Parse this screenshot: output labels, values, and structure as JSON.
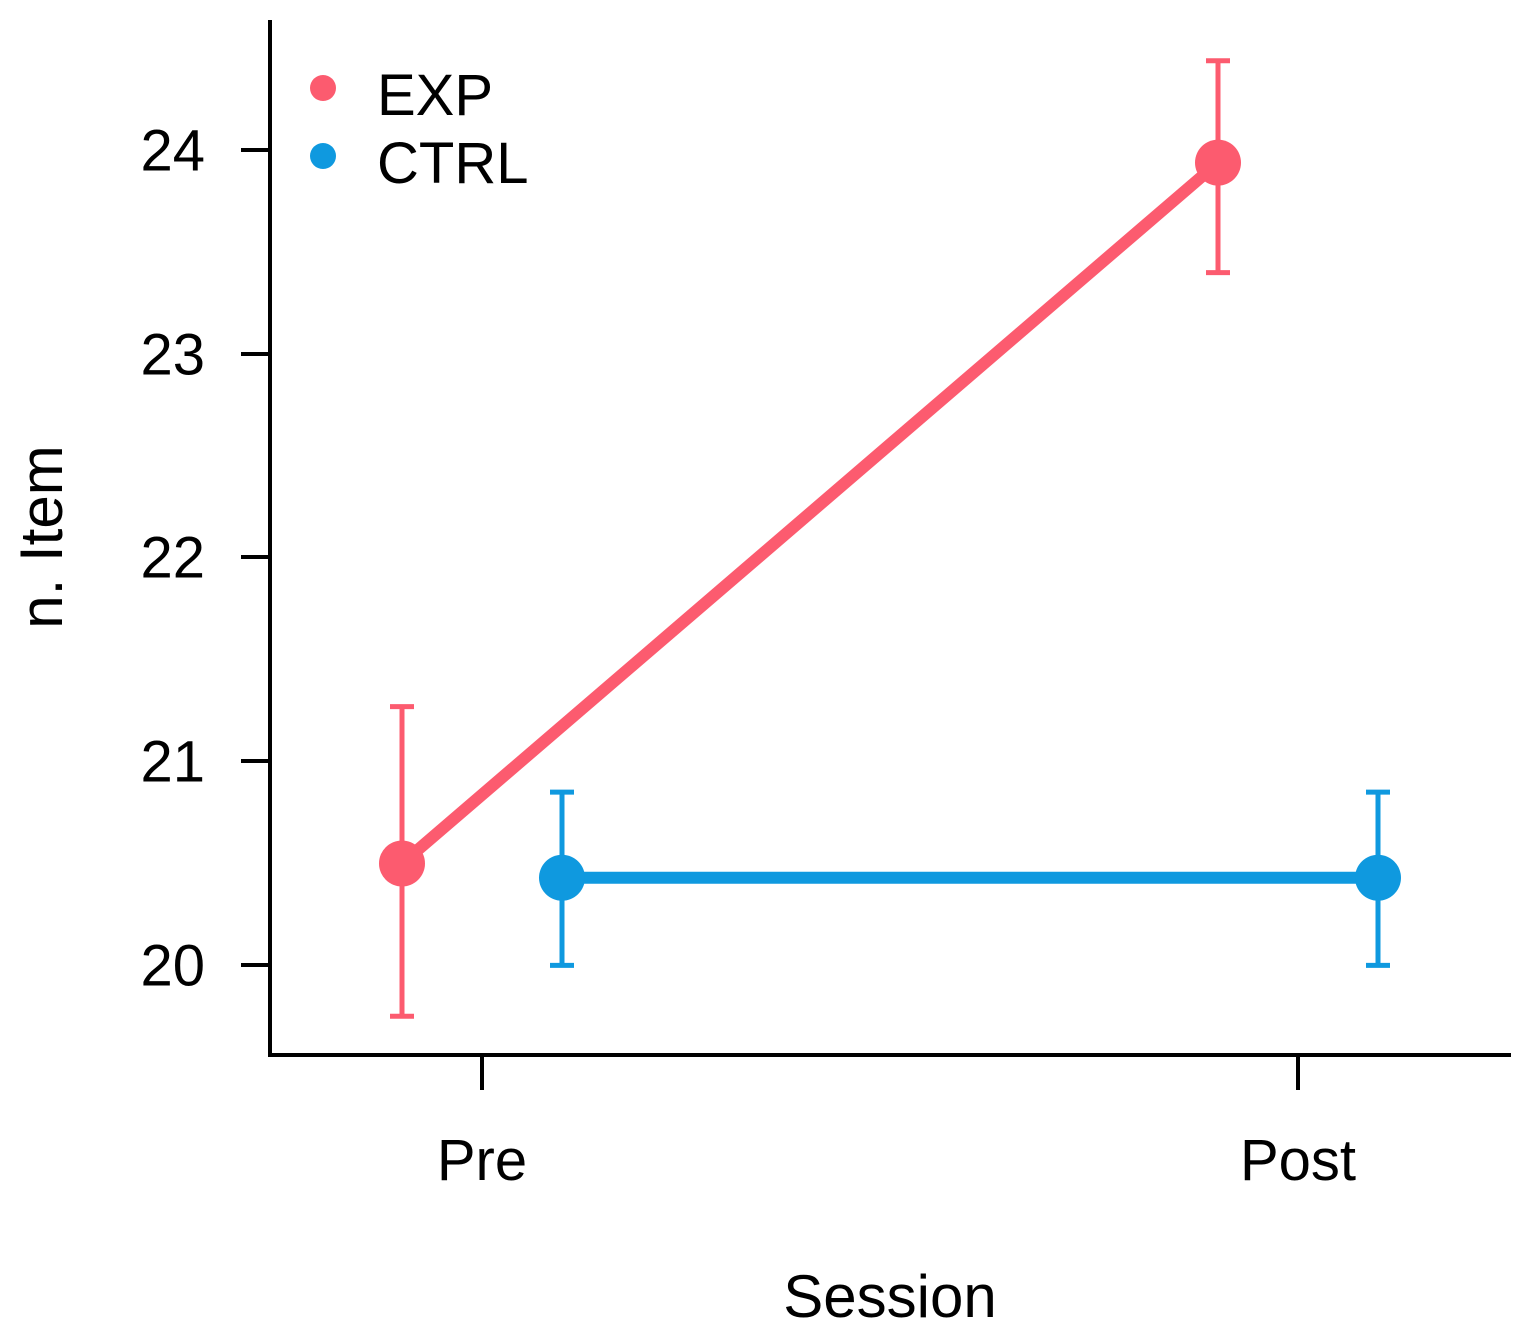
{
  "chart_data": {
    "type": "line",
    "title": "",
    "xlabel": "Session",
    "ylabel": "n. Item",
    "categories": [
      "Pre",
      "Post"
    ],
    "series": [
      {
        "name": "EXP",
        "color": "#FC5B6F",
        "values": [
          20.5,
          23.94
        ],
        "ci_lower": [
          19.75,
          23.4
        ],
        "ci_upper": [
          21.27,
          24.44
        ]
      },
      {
        "name": "CTRL",
        "color": "#0F99DF",
        "values": [
          20.43,
          20.43
        ],
        "ci_lower": [
          20.0,
          20.0
        ],
        "ci_upper": [
          20.85,
          20.85
        ]
      }
    ],
    "yticks": [
      20,
      21,
      22,
      23,
      24
    ],
    "ylim": [
      19.56,
      24.64
    ],
    "grid": false,
    "legend_position": "top-left",
    "points_dodged": "series offset horizontally around each category position",
    "axis_color": "#000000"
  }
}
